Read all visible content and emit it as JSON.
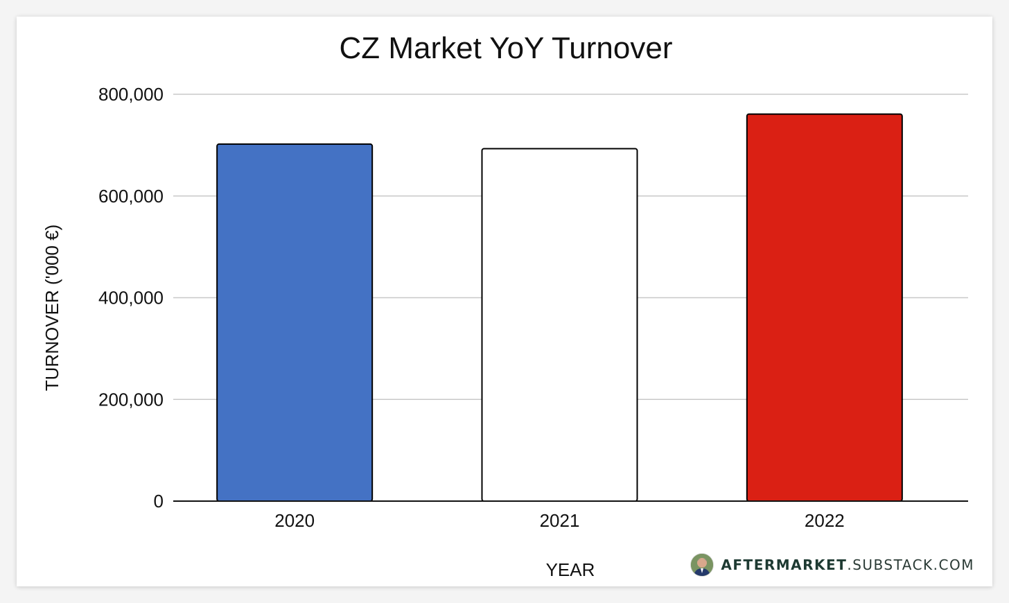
{
  "chart_data": {
    "type": "bar",
    "title": "CZ Market YoY Turnover",
    "xlabel": "YEAR",
    "ylabel": "TURNOVER ('000 €)",
    "categories": [
      "2020",
      "2021",
      "2022"
    ],
    "values": [
      702000,
      693000,
      761000
    ],
    "bar_colors": [
      "#4472c4",
      "#ffffff",
      "#da2014"
    ],
    "ylim": [
      0,
      800000
    ],
    "yticks": [
      0,
      200000,
      400000,
      600000,
      800000
    ],
    "ytick_labels": [
      "0",
      "200,000",
      "400,000",
      "600,000",
      "800,000"
    ],
    "grid": true,
    "legend": "none"
  },
  "watermark": {
    "brand": "AFTERMARKET",
    "domain": ".SUBSTACK.COM"
  }
}
